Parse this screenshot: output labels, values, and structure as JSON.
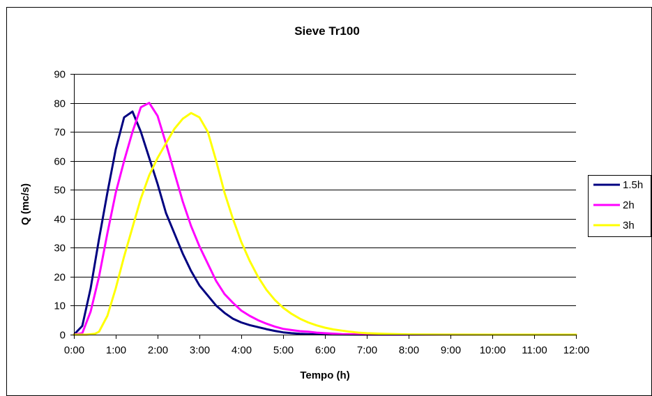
{
  "chart_data": {
    "type": "line",
    "title": "Sieve Tr100",
    "xlabel": "Tempo (h)",
    "ylabel": "Q (mc/s)",
    "x_ticks": [
      "0:00",
      "1:00",
      "2:00",
      "3:00",
      "4:00",
      "5:00",
      "6:00",
      "7:00",
      "8:00",
      "9:00",
      "10:00",
      "11:00",
      "12:00"
    ],
    "xlim": [
      0,
      12
    ],
    "ylim": [
      0,
      90
    ],
    "y_ticks": [
      0,
      10,
      20,
      30,
      40,
      50,
      60,
      70,
      80,
      90
    ],
    "grid": "horizontal",
    "legend_position": "right",
    "series": [
      {
        "name": "1.5h",
        "color": "#000080",
        "points": [
          [
            0,
            0
          ],
          [
            0.2,
            3
          ],
          [
            0.4,
            16
          ],
          [
            0.6,
            33
          ],
          [
            0.8,
            49
          ],
          [
            1.0,
            64
          ],
          [
            1.2,
            75
          ],
          [
            1.4,
            77
          ],
          [
            1.6,
            70
          ],
          [
            1.8,
            61
          ],
          [
            2.0,
            52
          ],
          [
            2.2,
            42
          ],
          [
            2.4,
            35
          ],
          [
            2.6,
            28
          ],
          [
            2.8,
            22
          ],
          [
            3.0,
            17
          ],
          [
            3.2,
            13.5
          ],
          [
            3.4,
            10
          ],
          [
            3.6,
            7.5
          ],
          [
            3.8,
            5.5
          ],
          [
            4.0,
            4.2
          ],
          [
            4.2,
            3.3
          ],
          [
            4.4,
            2.6
          ],
          [
            4.6,
            1.9
          ],
          [
            4.8,
            1.3
          ],
          [
            5.0,
            0.8
          ],
          [
            5.2,
            0.5
          ],
          [
            5.4,
            0.3
          ],
          [
            5.6,
            0.2
          ],
          [
            6.0,
            0.1
          ],
          [
            7.0,
            0
          ],
          [
            12.0,
            0
          ]
        ]
      },
      {
        "name": "2h",
        "color": "#ff00ff",
        "points": [
          [
            0,
            0
          ],
          [
            0.2,
            0.5
          ],
          [
            0.4,
            8
          ],
          [
            0.6,
            20
          ],
          [
            0.8,
            35
          ],
          [
            1.0,
            49
          ],
          [
            1.2,
            60
          ],
          [
            1.4,
            70
          ],
          [
            1.6,
            78.5
          ],
          [
            1.8,
            80
          ],
          [
            2.0,
            75.5
          ],
          [
            2.2,
            66
          ],
          [
            2.4,
            56
          ],
          [
            2.6,
            46
          ],
          [
            2.8,
            37.5
          ],
          [
            3.0,
            30.5
          ],
          [
            3.2,
            24.5
          ],
          [
            3.4,
            18.5
          ],
          [
            3.6,
            14
          ],
          [
            3.8,
            11
          ],
          [
            4.0,
            8.3
          ],
          [
            4.2,
            6.5
          ],
          [
            4.4,
            5
          ],
          [
            4.6,
            3.8
          ],
          [
            4.8,
            2.8
          ],
          [
            5.0,
            2
          ],
          [
            5.2,
            1.6
          ],
          [
            5.4,
            1.2
          ],
          [
            5.6,
            1
          ],
          [
            5.8,
            0.7
          ],
          [
            6.0,
            0.5
          ],
          [
            6.4,
            0.2
          ],
          [
            7.0,
            0.05
          ],
          [
            12.0,
            0
          ]
        ]
      },
      {
        "name": "3h",
        "color": "#ffff00",
        "points": [
          [
            0,
            0
          ],
          [
            0.3,
            0
          ],
          [
            0.5,
            0.3
          ],
          [
            0.6,
            1
          ],
          [
            0.8,
            6.5
          ],
          [
            1.0,
            16
          ],
          [
            1.2,
            27
          ],
          [
            1.4,
            37
          ],
          [
            1.6,
            47
          ],
          [
            1.8,
            55
          ],
          [
            2.0,
            61
          ],
          [
            2.2,
            66
          ],
          [
            2.4,
            71
          ],
          [
            2.6,
            74.5
          ],
          [
            2.8,
            76.5
          ],
          [
            3.0,
            75
          ],
          [
            3.2,
            70
          ],
          [
            3.4,
            60
          ],
          [
            3.6,
            49
          ],
          [
            3.8,
            40
          ],
          [
            4.0,
            32
          ],
          [
            4.2,
            25.5
          ],
          [
            4.4,
            20
          ],
          [
            4.6,
            15.5
          ],
          [
            4.8,
            12
          ],
          [
            5.0,
            9.3
          ],
          [
            5.2,
            7.2
          ],
          [
            5.4,
            5.5
          ],
          [
            5.6,
            4.2
          ],
          [
            5.8,
            3.2
          ],
          [
            6.0,
            2.4
          ],
          [
            6.2,
            1.8
          ],
          [
            6.4,
            1.4
          ],
          [
            6.6,
            1.0
          ],
          [
            6.8,
            0.7
          ],
          [
            7.0,
            0.5
          ],
          [
            7.4,
            0.3
          ],
          [
            8.0,
            0.1
          ],
          [
            9.0,
            0.03
          ],
          [
            10.0,
            0
          ],
          [
            12.0,
            0
          ]
        ]
      }
    ]
  }
}
